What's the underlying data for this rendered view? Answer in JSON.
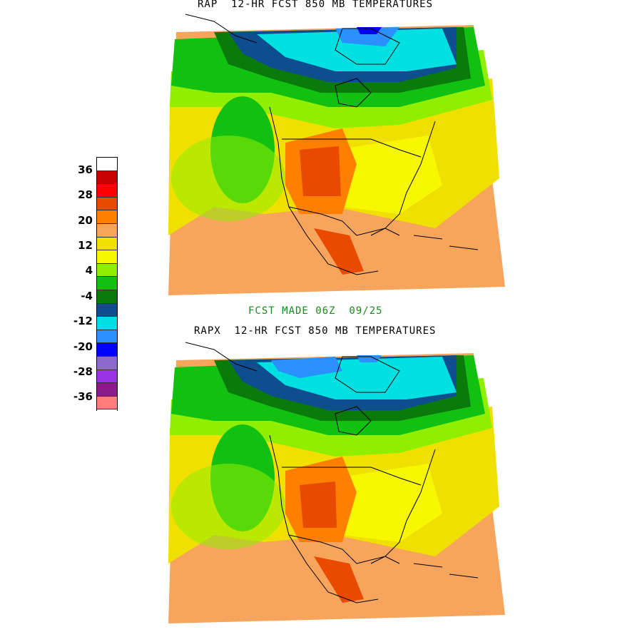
{
  "top_panel": {
    "title": "RAP  12-HR FCST 850 MB TEMPERATURES"
  },
  "middle_label": {
    "text": "FCST MADE 06Z  09/25"
  },
  "bottom_panel": {
    "title": "RAPX  12-HR FCST 850 MB TEMPERATURES"
  },
  "legend": {
    "ticks": [
      "36",
      "28",
      "20",
      "12",
      "4",
      "-4",
      "-12",
      "-20",
      "-28",
      "-36"
    ],
    "colors": [
      "#ffffff",
      "#c80000",
      "#ff0000",
      "#e84a00",
      "#ff8000",
      "#f7a55c",
      "#f0e000",
      "#f7f700",
      "#90ee00",
      "#12c012",
      "#0a7a0a",
      "#0e4e8e",
      "#00e0e0",
      "#2a8fff",
      "#0000ff",
      "#8a6acd",
      "#9a32e6",
      "#8b1a8b",
      "#ff7f7f",
      "#ffffff"
    ]
  },
  "palette": {
    "orange": "#f7a55c",
    "yellow": "#f0e000",
    "lightyellow": "#f7f700",
    "lime": "#90ee00",
    "green": "#12c012",
    "darkgreen": "#0a7a0a",
    "navy": "#0e4e8e",
    "cyan": "#00e0e0",
    "blue": "#2a8fff",
    "deepblue": "#0000ff",
    "orangered": "#e84a00",
    "darkorange": "#ff8000"
  }
}
